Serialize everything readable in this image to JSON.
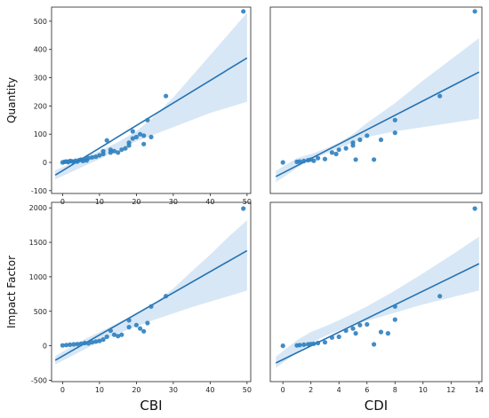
{
  "colors": {
    "point": "#2e7fbf",
    "line": "#2472b3",
    "band": "#a9c9e8",
    "frame": "#222222"
  },
  "chart_data": [
    {
      "id": "cbi-quantity",
      "type": "scatter",
      "xlabel": "",
      "ylabel": "Quantity",
      "xlim": [
        -3,
        51
      ],
      "ylim": [
        -110,
        550
      ],
      "xticks": [
        "0",
        "10",
        "20",
        "30",
        "40",
        "50"
      ],
      "yticks": [
        "-100",
        "0",
        "100",
        "200",
        "300",
        "400",
        "500"
      ],
      "x": [
        0,
        0.5,
        1,
        1.5,
        2,
        2.5,
        3,
        3.5,
        4,
        4.5,
        5,
        5.5,
        6,
        6.5,
        7,
        8,
        9,
        10,
        11,
        11,
        12,
        13,
        13,
        14,
        15,
        16,
        17,
        18,
        18,
        19,
        19,
        20,
        21,
        22,
        22,
        23,
        24,
        28,
        49
      ],
      "y": [
        0,
        2,
        3,
        1,
        5,
        4,
        2,
        6,
        3,
        8,
        10,
        5,
        12,
        7,
        15,
        18,
        20,
        25,
        30,
        40,
        78,
        45,
        35,
        40,
        35,
        45,
        50,
        70,
        60,
        110,
        85,
        90,
        100,
        65,
        95,
        150,
        90,
        235,
        535
      ],
      "fit": {
        "x": [
          -2,
          50
        ],
        "y": [
          -45,
          370
        ]
      },
      "band": {
        "x": [
          -2,
          5,
          10,
          15,
          20,
          25,
          30,
          35,
          40,
          45,
          50
        ],
        "lower": [
          -60,
          -18,
          12,
          45,
          75,
          100,
          125,
          150,
          175,
          195,
          215
        ],
        "upper": [
          -28,
          12,
          40,
          72,
          110,
          165,
          230,
          305,
          380,
          455,
          530
        ]
      }
    },
    {
      "id": "cdi-quantity",
      "type": "scatter",
      "xlabel": "",
      "ylabel": "",
      "xlim": [
        -0.9,
        14.2
      ],
      "ylim": [
        -110,
        550
      ],
      "xticks": [],
      "yticks": [],
      "x": [
        0,
        1,
        1.2,
        1.5,
        1.8,
        2,
        2.2,
        2.5,
        3,
        3.5,
        3.8,
        4,
        4.5,
        5,
        5,
        5.2,
        5.5,
        6,
        6.5,
        7,
        8,
        8,
        11.2,
        13.7
      ],
      "y": [
        0,
        2,
        3,
        5,
        8,
        10,
        6,
        15,
        12,
        35,
        30,
        45,
        50,
        60,
        70,
        10,
        80,
        95,
        10,
        80,
        105,
        150,
        235,
        535
      ],
      "fit": {
        "x": [
          -0.5,
          14
        ],
        "y": [
          -50,
          320
        ]
      },
      "band": {
        "x": [
          -0.5,
          1,
          2,
          3,
          4,
          5,
          6,
          8,
          10,
          12,
          14
        ],
        "lower": [
          -70,
          -20,
          10,
          30,
          50,
          70,
          90,
          110,
          125,
          140,
          155
        ],
        "upper": [
          -30,
          15,
          30,
          48,
          70,
          100,
          140,
          210,
          290,
          365,
          440
        ]
      }
    },
    {
      "id": "cbi-impact",
      "type": "scatter",
      "xlabel": "CBI",
      "ylabel": "Impact Factor",
      "xlim": [
        -3,
        51
      ],
      "ylim": [
        -520,
        2080
      ],
      "xticks": [
        "0",
        "10",
        "20",
        "30",
        "40",
        "50"
      ],
      "yticks": [
        "-500",
        "0",
        "500",
        "1000",
        "1500",
        "2000"
      ],
      "x": [
        0,
        1,
        2,
        3,
        4,
        5,
        6,
        7,
        8,
        9,
        10,
        11,
        12,
        13,
        14,
        15,
        16,
        18,
        18,
        20,
        21,
        22,
        23,
        24,
        28,
        49
      ],
      "y": [
        5,
        10,
        15,
        20,
        25,
        30,
        40,
        35,
        50,
        60,
        70,
        90,
        130,
        220,
        160,
        140,
        160,
        270,
        370,
        300,
        250,
        210,
        330,
        570,
        720,
        1990
      ],
      "fit": {
        "x": [
          -2,
          50
        ],
        "y": [
          -210,
          1380
        ]
      },
      "band": {
        "x": [
          -2,
          5,
          10,
          15,
          20,
          25,
          30,
          35,
          40,
          45,
          50
        ],
        "lower": [
          -270,
          -80,
          60,
          180,
          280,
          380,
          470,
          560,
          640,
          720,
          800
        ],
        "upper": [
          -150,
          70,
          200,
          330,
          460,
          620,
          830,
          1080,
          1320,
          1580,
          1820
        ]
      }
    },
    {
      "id": "cdi-impact",
      "type": "scatter",
      "xlabel": "CDI",
      "ylabel": "",
      "xlim": [
        -0.9,
        14.2
      ],
      "ylim": [
        -520,
        2080
      ],
      "xticks": [
        "0",
        "2",
        "4",
        "6",
        "8",
        "10",
        "12",
        "14"
      ],
      "yticks": [],
      "x": [
        0,
        1,
        1.2,
        1.5,
        1.8,
        2,
        2.2,
        2.5,
        3,
        3.5,
        4,
        4.5,
        5,
        5.2,
        5.5,
        6,
        6.5,
        7,
        7.5,
        8,
        8,
        11.2,
        13.7
      ],
      "y": [
        0,
        5,
        10,
        15,
        20,
        25,
        30,
        40,
        50,
        120,
        130,
        220,
        250,
        180,
        300,
        310,
        20,
        200,
        180,
        380,
        570,
        720,
        1990
      ],
      "fit": {
        "x": [
          -0.5,
          14
        ],
        "y": [
          -250,
          1190
        ]
      },
      "band": {
        "x": [
          -0.5,
          1,
          2,
          3,
          4,
          5,
          6,
          8,
          10,
          12,
          14
        ],
        "lower": [
          -320,
          -100,
          40,
          140,
          220,
          290,
          360,
          480,
          600,
          700,
          800
        ],
        "upper": [
          -160,
          80,
          200,
          280,
          370,
          470,
          570,
          800,
          1050,
          1310,
          1580
        ]
      }
    }
  ]
}
